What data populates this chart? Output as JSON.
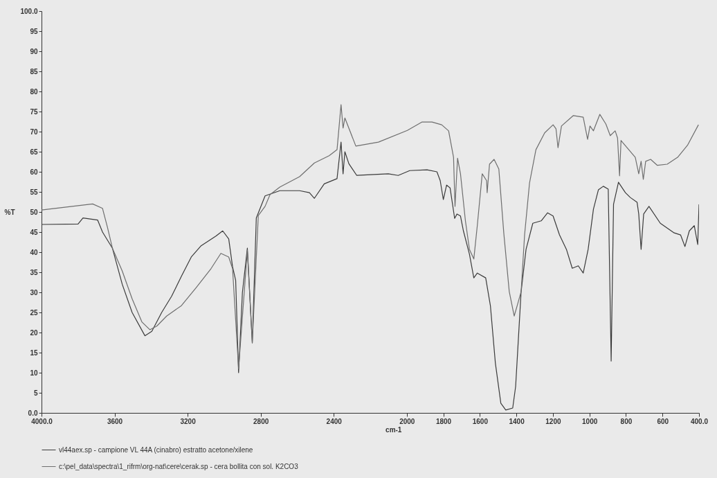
{
  "chart_data": {
    "type": "line",
    "xlabel": "cm-1",
    "ylabel": "%T",
    "xlim": [
      4000,
      400
    ],
    "ylim": [
      0,
      100
    ],
    "xticks": [
      {
        "value": 4000,
        "label": "4000.0"
      },
      3600,
      3200,
      2800,
      2400,
      2000,
      1800,
      1600,
      1400,
      1200,
      1000,
      800,
      600,
      {
        "value": 400,
        "label": "400.0"
      }
    ],
    "yticks": [
      {
        "value": 0,
        "label": "0.0"
      },
      5,
      10,
      15,
      20,
      25,
      30,
      35,
      40,
      45,
      50,
      55,
      60,
      65,
      70,
      75,
      80,
      85,
      90,
      95,
      {
        "value": 100,
        "label": "100.0"
      }
    ],
    "grid": false,
    "legend": "bottom",
    "line_style": "solid",
    "series": [
      {
        "name": "vl44aex.sp - campione VL 44A (cinabro) estratto acetone/xilene",
        "color": "#3a3a3a",
        "x": [
          4000,
          3800,
          3773,
          3693,
          3666,
          3612,
          3558,
          3504,
          3434,
          3396,
          3342,
          3288,
          3234,
          3180,
          3126,
          3045,
          3008,
          2975,
          2954,
          2937,
          2921,
          2900,
          2873,
          2846,
          2824,
          2776,
          2695,
          2587,
          2533,
          2506,
          2452,
          2382,
          2360,
          2349,
          2339,
          2317,
          2274,
          2101,
          2047,
          1984,
          1889,
          1835,
          1817,
          1800,
          1782,
          1763,
          1738,
          1725,
          1706,
          1690,
          1657,
          1633,
          1614,
          1568,
          1542,
          1515,
          1485,
          1458,
          1420,
          1404,
          1374,
          1347,
          1310,
          1264,
          1229,
          1199,
          1164,
          1126,
          1094,
          1061,
          1034,
          1007,
          978,
          951,
          924,
          897,
          881,
          868,
          841,
          803,
          776,
          739,
          730,
          717,
          703,
          674,
          612,
          536,
          501,
          477,
          453,
          426,
          407,
          400
        ],
        "values": [
          46.9,
          47,
          48.5,
          48,
          45,
          41,
          32,
          25,
          19.2,
          20.3,
          25,
          29,
          34,
          38.8,
          41.6,
          44,
          45.3,
          43.3,
          36.4,
          33,
          10,
          30,
          41,
          17.4,
          48.5,
          54,
          55.3,
          55.3,
          54.8,
          53.4,
          57,
          58.3,
          67.4,
          59.5,
          65,
          62,
          59.1,
          59.5,
          59.1,
          60.3,
          60.5,
          60,
          57.8,
          53.1,
          56.7,
          56,
          48.4,
          49.5,
          49,
          45.3,
          39.5,
          33.6,
          34.8,
          33.6,
          26.6,
          12.4,
          2.4,
          0.7,
          1.2,
          6.6,
          30.2,
          40.7,
          47.2,
          47.8,
          49.8,
          49,
          44.3,
          40.7,
          36,
          36.6,
          34.8,
          40.7,
          50.7,
          55.5,
          56.4,
          55.7,
          12.9,
          51.9,
          57.4,
          54.8,
          53.6,
          52.4,
          49.5,
          40.7,
          49.5,
          51.4,
          47.2,
          44.8,
          44.3,
          41.4,
          45.3,
          46.6,
          41.9,
          51.9
        ]
      },
      {
        "name": "c:\\pel_data\\spectra\\1_rifrm\\org-nat\\cere\\cerak.sp - cera bollita con sol. K2CO3",
        "color": "#6e6e6e",
        "x": [
          4000,
          3720,
          3666,
          3639,
          3612,
          3558,
          3504,
          3450,
          3407,
          3369,
          3315,
          3234,
          3153,
          3072,
          3018,
          2975,
          2954,
          2921,
          2873,
          2846,
          2813,
          2776,
          2749,
          2695,
          2587,
          2506,
          2425,
          2382,
          2360,
          2349,
          2339,
          2279,
          2155,
          1997,
          1916,
          1862,
          1809,
          1771,
          1744,
          1736,
          1722,
          1706,
          1679,
          1657,
          1633,
          1614,
          1587,
          1563,
          1560,
          1547,
          1522,
          1496,
          1469,
          1439,
          1412,
          1393,
          1374,
          1355,
          1328,
          1293,
          1245,
          1199,
          1183,
          1172,
          1153,
          1088,
          1034,
          1010,
          997,
          978,
          943,
          910,
          886,
          859,
          846,
          835,
          827,
          794,
          749,
          730,
          717,
          705,
          692,
          665,
          628,
          574,
          517,
          463,
          403
        ],
        "values": [
          50.5,
          52,
          50.9,
          46.2,
          41,
          35.3,
          28.4,
          22.6,
          20.7,
          21.6,
          24.1,
          26.7,
          31.2,
          35.9,
          39.7,
          38.8,
          35.9,
          11,
          40.5,
          17.5,
          49.1,
          51.4,
          54.3,
          56.2,
          58.8,
          62.2,
          64,
          65.5,
          76.7,
          70.9,
          73.4,
          66.4,
          67.4,
          70.3,
          72.4,
          72.4,
          71.7,
          70.2,
          63.6,
          51.4,
          63.4,
          59.5,
          47.8,
          40.7,
          38.3,
          46.6,
          59.5,
          57.8,
          54.8,
          61.9,
          63.1,
          60.7,
          44.8,
          30.2,
          24.1,
          27.1,
          30.2,
          44.3,
          57.2,
          65.5,
          69.7,
          71.7,
          70.7,
          66,
          71.4,
          74,
          73.6,
          68.1,
          71.4,
          70.2,
          74.3,
          71.9,
          69,
          70.2,
          68.4,
          59,
          67.8,
          66,
          63.6,
          59.5,
          62.6,
          58.1,
          62.6,
          63.1,
          61.6,
          61.9,
          63.6,
          66.6,
          71.7
        ]
      }
    ]
  }
}
